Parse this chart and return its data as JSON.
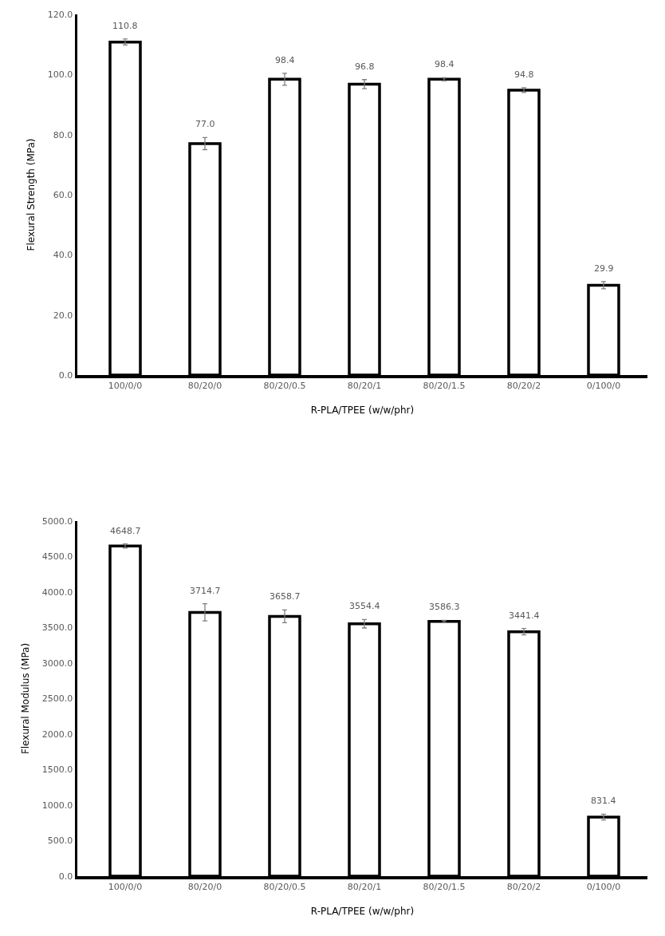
{
  "chart_data": [
    {
      "type": "bar",
      "ylabel": "Flexural Strength (MPa)",
      "xlabel": "R-PLA/TPEE (w/w/phr)",
      "categories": [
        "100/0/0",
        "80/20/0",
        "80/20/0.5",
        "80/20/1",
        "80/20/1.5",
        "80/20/2",
        "0/100/0"
      ],
      "values": [
        110.8,
        77.0,
        98.4,
        96.8,
        98.4,
        94.8,
        29.9
      ],
      "color": "#ffffff",
      "value_labels": [
        "110.8",
        "77.0",
        "98.4",
        "96.8",
        "98.4",
        "94.8",
        "29.9"
      ],
      "errors": [
        1,
        2,
        2,
        1.5,
        0.5,
        0.8,
        1.2
      ],
      "ylim": [
        0,
        120
      ],
      "yticks": [
        {
          "value": 0,
          "label": "0.0"
        },
        {
          "value": 20,
          "label": "20.0"
        },
        {
          "value": 40,
          "label": "40.0"
        },
        {
          "value": 60,
          "label": "60.0"
        },
        {
          "value": 80,
          "label": "80.0"
        },
        {
          "value": 100,
          "label": "100.0"
        },
        {
          "value": 120,
          "label": "120.0"
        }
      ],
      "grid": false
    },
    {
      "type": "bar",
      "ylabel": "Flexural Modulus (MPa)",
      "xlabel": "R-PLA/TPEE (w/w/phr)",
      "categories": [
        "100/0/0",
        "80/20/0",
        "80/20/0.5",
        "80/20/1",
        "80/20/1.5",
        "80/20/2",
        "0/100/0"
      ],
      "values": [
        4648.7,
        3714.7,
        3658.7,
        3554.4,
        3586.3,
        3441.4,
        831.4
      ],
      "color": "#ffffff",
      "value_labels": [
        "4648.7",
        "3714.7",
        "3658.7",
        "3554.4",
        "3586.3",
        "3441.4",
        "831.4"
      ],
      "errors": [
        30,
        120,
        90,
        60,
        15,
        45,
        40
      ],
      "ylim": [
        0,
        5000
      ],
      "yticks": [
        {
          "value": 0,
          "label": "0.0"
        },
        {
          "value": 500,
          "label": "500.0"
        },
        {
          "value": 1000,
          "label": "1000.0"
        },
        {
          "value": 1500,
          "label": "1500.0"
        },
        {
          "value": 2000,
          "label": "2000.0"
        },
        {
          "value": 2500,
          "label": "2500.0"
        },
        {
          "value": 3000,
          "label": "3000.0"
        },
        {
          "value": 3500,
          "label": "3500.0"
        },
        {
          "value": 4000,
          "label": "4000.0"
        },
        {
          "value": 4500,
          "label": "4500.0"
        },
        {
          "value": 5000,
          "label": "5000.0"
        }
      ],
      "grid": false
    }
  ]
}
